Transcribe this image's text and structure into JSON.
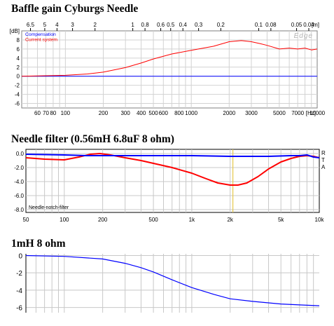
{
  "headings": {
    "c1": "Baffle gain Cyburgs Needle",
    "c2": "Needle filter (0.56mH  6.8uF 8 ohm)",
    "c3": "1mH 8 ohm"
  },
  "chart_data": [
    {
      "type": "line",
      "title": "Baffle gain Cyburgs Needle",
      "ylabel": "[dB]",
      "xlabel": "[Hz]",
      "x_scale": "log",
      "xlim": [
        45,
        10000
      ],
      "ylim": [
        -7,
        10
      ],
      "grid": true,
      "x_ticks": [
        60,
        70,
        80,
        100,
        200,
        300,
        400,
        500,
        600,
        800,
        1000,
        2000,
        3000,
        5000,
        7000,
        10000
      ],
      "x_tick_labels": [
        "60",
        "70",
        "80",
        "100",
        "200",
        "300",
        "400",
        "500",
        "600",
        "800",
        "1000",
        "2000",
        "3000",
        "5000",
        "7000",
        "10000"
      ],
      "y_ticks": [
        8,
        6,
        4,
        2,
        0,
        -2,
        -4,
        -6
      ],
      "top_axis_label": "[m]",
      "top_axis": [
        {
          "f": 52.8,
          "label": "6.5"
        },
        {
          "f": 68.6,
          "label": "5"
        },
        {
          "f": 85.8,
          "label": "4"
        },
        {
          "f": 114,
          "label": "3"
        },
        {
          "f": 172,
          "label": "2"
        },
        {
          "f": 343,
          "label": "1"
        },
        {
          "f": 429,
          "label": "0.8"
        },
        {
          "f": 572,
          "label": "0.6"
        },
        {
          "f": 686,
          "label": "0.5"
        },
        {
          "f": 858,
          "label": "0.4"
        },
        {
          "f": 1143,
          "label": "0.3"
        },
        {
          "f": 1715,
          "label": "0.2"
        },
        {
          "f": 3430,
          "label": "0.1"
        },
        {
          "f": 4287,
          "label": "0.08"
        },
        {
          "f": 6860,
          "label": "0.05"
        },
        {
          "f": 8575,
          "label": "0.04"
        }
      ],
      "watermark": "Edge",
      "series": [
        {
          "name": "Compensation",
          "color": "#0000ff",
          "x": [
            45,
            10000
          ],
          "y": [
            0,
            0
          ]
        },
        {
          "name": "Current system",
          "color": "#ff0000",
          "x": [
            45,
            100,
            150,
            200,
            300,
            400,
            500,
            700,
            1000,
            1500,
            2000,
            2500,
            3000,
            3500,
            4000,
            5000,
            6000,
            7000,
            8000,
            9000,
            10000
          ],
          "y": [
            0,
            0.2,
            0.5,
            0.9,
            1.9,
            2.9,
            3.8,
            4.9,
            5.7,
            6.6,
            7.6,
            7.85,
            7.6,
            7.2,
            6.8,
            6.0,
            6.2,
            6.0,
            6.2,
            5.8,
            6.0
          ]
        }
      ]
    },
    {
      "type": "line",
      "title": "Needle filter (0.56mH  6.8uF 8 ohm)",
      "x_scale": "log",
      "xlim": [
        50,
        10000
      ],
      "ylim": [
        -8.4,
        0.6
      ],
      "grid": true,
      "x_ticks": [
        50,
        100,
        200,
        500,
        1000,
        2000,
        5000,
        10000
      ],
      "x_tick_labels": [
        "50",
        "100",
        "200",
        "500",
        "1k",
        "2k",
        "5k",
        "10k"
      ],
      "y_ticks": [
        0,
        -2,
        -4,
        -6,
        -8
      ],
      "y_tick_labels": [
        "0.0",
        "-2.0",
        "-4.0",
        "-6.0",
        "-8.0"
      ],
      "side_labels": [
        "R",
        "T",
        "A"
      ],
      "legend_text": "Needle-notch-filter",
      "cursor_x": 2100,
      "series": [
        {
          "name": "",
          "color": "#ff0000",
          "x": [
            50,
            70,
            100,
            130,
            160,
            190,
            230,
            300,
            400,
            500,
            700,
            1000,
            1300,
            1600,
            2000,
            2300,
            2700,
            3300,
            4000,
            5000,
            6000,
            7000,
            8000,
            9000,
            10000
          ],
          "y": [
            -0.6,
            -0.8,
            -0.9,
            -0.5,
            -0.1,
            0.0,
            -0.2,
            -0.6,
            -1.0,
            -1.4,
            -2.0,
            -2.8,
            -3.6,
            -4.2,
            -4.5,
            -4.5,
            -4.2,
            -3.3,
            -2.2,
            -1.2,
            -0.7,
            -0.4,
            -0.3,
            -0.4,
            -0.6
          ]
        },
        {
          "name": "",
          "color": "#0000ff",
          "x": [
            50,
            100,
            150,
            200,
            300,
            500,
            1000,
            2000,
            4000,
            6000,
            7000,
            8000,
            9000,
            10000
          ],
          "y": [
            -0.1,
            -0.2,
            -0.3,
            -0.3,
            -0.3,
            -0.3,
            -0.3,
            -0.4,
            -0.4,
            -0.3,
            -0.3,
            -0.2,
            -0.5,
            -0.6
          ]
        }
      ]
    },
    {
      "type": "line",
      "title": "1mH 8 ohm",
      "x_scale": "log",
      "xlim": [
        50,
        10000
      ],
      "ylim": [
        -6.6,
        0.2
      ],
      "grid": true,
      "y_ticks": [
        0,
        -2,
        -4,
        -6
      ],
      "series": [
        {
          "name": "",
          "color": "#0000ff",
          "x": [
            50,
            100,
            200,
            300,
            400,
            500,
            700,
            1000,
            1500,
            2000,
            3000,
            5000,
            7000,
            10000
          ],
          "y": [
            0,
            -0.1,
            -0.4,
            -0.9,
            -1.4,
            -1.9,
            -2.8,
            -3.7,
            -4.5,
            -5.0,
            -5.3,
            -5.6,
            -5.7,
            -5.8
          ]
        }
      ]
    }
  ]
}
